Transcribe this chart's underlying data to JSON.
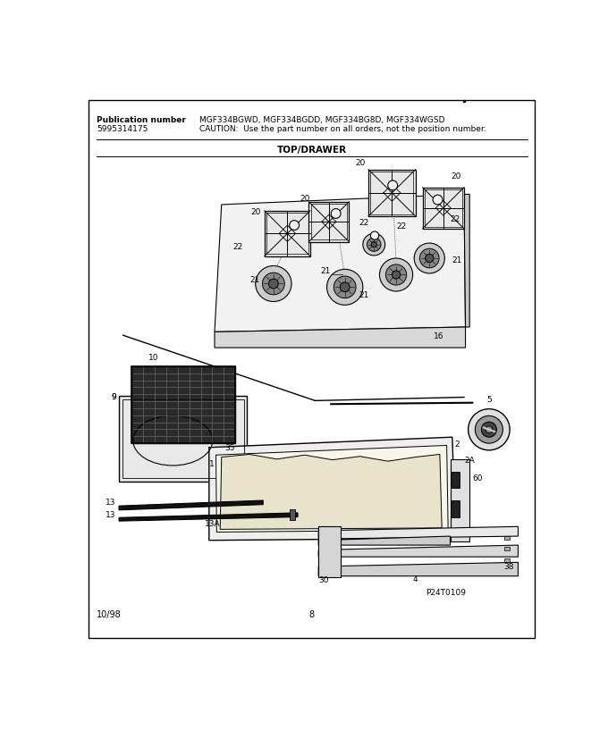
{
  "title": "TOP/DRAWER",
  "pub_label": "Publication number",
  "pub_number": "5995314175",
  "model_numbers": "MGF334BGWD, MGF334BGDD, MGF334BG8D, MGF334WGSD",
  "caution": "CAUTION:  Use the part number on all orders, not the position number.",
  "footer_left": "10/98",
  "footer_center": "8",
  "watermark": "P24T0109",
  "bg_color": "#ffffff",
  "line_color": "#000000",
  "text_color": "#000000",
  "gray_fill": "#d8d8d8",
  "light_fill": "#f0f0f0",
  "dark_fill": "#404040"
}
